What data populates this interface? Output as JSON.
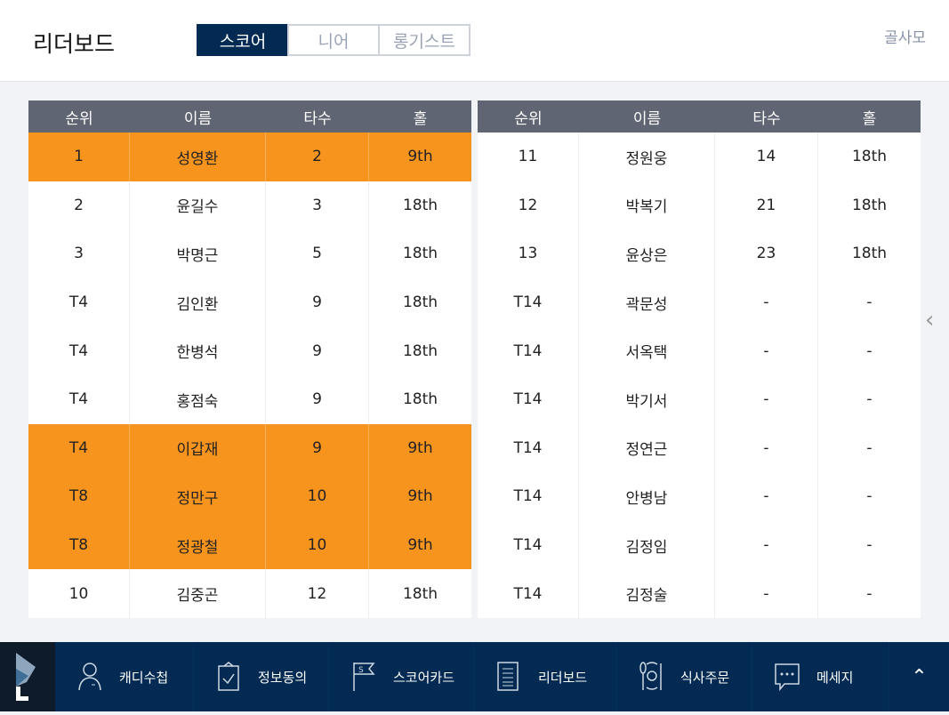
{
  "header": {
    "title": "리더보드",
    "tabs": [
      "스코어",
      "니어",
      "롱기스트"
    ],
    "active_tab": 0,
    "club": "골사모"
  },
  "columns": [
    "순위",
    "이름",
    "타수",
    "홀"
  ],
  "left_rows": [
    {
      "rank": "1",
      "name": "성영환",
      "strokes": "2",
      "hole": "9th",
      "highlight": true
    },
    {
      "rank": "2",
      "name": "윤길수",
      "strokes": "3",
      "hole": "18th",
      "highlight": false
    },
    {
      "rank": "3",
      "name": "박명근",
      "strokes": "5",
      "hole": "18th",
      "highlight": false
    },
    {
      "rank": "T4",
      "name": "김인환",
      "strokes": "9",
      "hole": "18th",
      "highlight": false
    },
    {
      "rank": "T4",
      "name": "한병석",
      "strokes": "9",
      "hole": "18th",
      "highlight": false
    },
    {
      "rank": "T4",
      "name": "홍점숙",
      "strokes": "9",
      "hole": "18th",
      "highlight": false
    },
    {
      "rank": "T4",
      "name": "이갑재",
      "strokes": "9",
      "hole": "9th",
      "highlight": true
    },
    {
      "rank": "T8",
      "name": "정만구",
      "strokes": "10",
      "hole": "9th",
      "highlight": true
    },
    {
      "rank": "T8",
      "name": "정광철",
      "strokes": "10",
      "hole": "9th",
      "highlight": true
    },
    {
      "rank": "10",
      "name": "김중곤",
      "strokes": "12",
      "hole": "18th",
      "highlight": false
    }
  ],
  "right_rows": [
    {
      "rank": "11",
      "name": "정원웅",
      "strokes": "14",
      "hole": "18th",
      "highlight": false
    },
    {
      "rank": "12",
      "name": "박복기",
      "strokes": "21",
      "hole": "18th",
      "highlight": false
    },
    {
      "rank": "13",
      "name": "윤상은",
      "strokes": "23",
      "hole": "18th",
      "highlight": false
    },
    {
      "rank": "T14",
      "name": "곽문성",
      "strokes": "-",
      "hole": "-",
      "highlight": false
    },
    {
      "rank": "T14",
      "name": "서옥택",
      "strokes": "-",
      "hole": "-",
      "highlight": false
    },
    {
      "rank": "T14",
      "name": "박기서",
      "strokes": "-",
      "hole": "-",
      "highlight": false
    },
    {
      "rank": "T14",
      "name": "정연근",
      "strokes": "-",
      "hole": "-",
      "highlight": false
    },
    {
      "rank": "T14",
      "name": "안병남",
      "strokes": "-",
      "hole": "-",
      "highlight": false
    },
    {
      "rank": "T14",
      "name": "김정임",
      "strokes": "-",
      "hole": "-",
      "highlight": false
    },
    {
      "rank": "T14",
      "name": "김정술",
      "strokes": "-",
      "hole": "-",
      "highlight": false
    }
  ],
  "bottom_nav": [
    {
      "label": "캐디수첩",
      "icon": "caddie-icon"
    },
    {
      "label": "정보동의",
      "icon": "clipboard-check-icon"
    },
    {
      "label": "스코어카드",
      "icon": "flag-icon"
    },
    {
      "label": "리더보드",
      "icon": "list-icon"
    },
    {
      "label": "식사주문",
      "icon": "meal-icon"
    },
    {
      "label": "메세지",
      "icon": "message-icon"
    }
  ],
  "colors": {
    "accent": "#f7941d",
    "navy": "#022a52",
    "header": "#5f6572"
  }
}
